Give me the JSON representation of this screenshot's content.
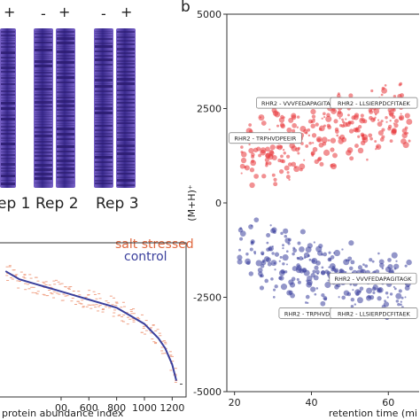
{
  "panel_labels": {
    "b": "b"
  },
  "gel_panel": {
    "signs": {
      "minus": "-",
      "plus": "+"
    },
    "replicates": [
      "ep 1",
      "Rep 2",
      "Rep 3"
    ],
    "colors": {
      "lane_light": "#7a63c9",
      "lane_dark": "#3a2a8e",
      "band": "#2a1a6e"
    }
  },
  "chart_data": [
    {
      "type": "scatter",
      "title": "",
      "xlabel": "protein abundance index",
      "ylabel": "",
      "xlim": [
        -40,
        1300
      ],
      "x_ticks": [
        "00",
        "600",
        "800",
        "1000",
        "1200"
      ],
      "grid": false,
      "legend": {
        "placement": "top-right",
        "entries": [
          {
            "name": "salt stressed",
            "color": "#e8856a"
          },
          {
            "name": "control",
            "color": "#3a3f9c"
          }
        ]
      },
      "series": [
        {
          "name": "salt stressed",
          "style": "points",
          "color": "#f0a58a",
          "x": [
            0,
            50,
            100,
            150,
            200,
            250,
            300,
            350,
            400,
            450,
            500,
            550,
            600,
            650,
            700,
            750,
            800,
            850,
            900,
            950,
            1000,
            1050,
            1100,
            1150,
            1200,
            1230
          ],
          "y": [
            0.8,
            0.7,
            0.6,
            0.55,
            0.5,
            0.45,
            0.4,
            0.35,
            0.3,
            0.25,
            0.2,
            0.15,
            0.1,
            0.05,
            0.0,
            -0.05,
            -0.1,
            -0.2,
            -0.3,
            -0.4,
            -0.5,
            -0.65,
            -0.85,
            -1.1,
            -1.5,
            -1.9
          ]
        },
        {
          "name": "control",
          "style": "line",
          "color": "#3a3f9c",
          "x": [
            0,
            100,
            200,
            300,
            400,
            500,
            600,
            700,
            800,
            900,
            1000,
            1100,
            1150,
            1200,
            1230
          ],
          "y": [
            0.8,
            0.6,
            0.5,
            0.4,
            0.3,
            0.2,
            0.1,
            0.0,
            -0.1,
            -0.3,
            -0.5,
            -0.85,
            -1.1,
            -1.5,
            -1.9
          ]
        }
      ],
      "annotations": [
        "-"
      ]
    },
    {
      "type": "scatter",
      "title": "",
      "xlabel": "retention time (mi",
      "ylabel": "(M+H)⁺",
      "xlim": [
        18,
        68
      ],
      "ylim": [
        -5000,
        5000
      ],
      "x_ticks": [
        "20",
        "40",
        "60"
      ],
      "y_ticks": [
        "5000",
        "2500",
        "0",
        "-2500",
        "-5000"
      ],
      "grid": false,
      "series": [
        {
          "name": "",
          "color": "#e8373a",
          "x": [
            22,
            24,
            25,
            27,
            28,
            29,
            30,
            31,
            32,
            33,
            34,
            35,
            36,
            37,
            38,
            39,
            40,
            41,
            42,
            43,
            44,
            45,
            46,
            47,
            48,
            49,
            50,
            51,
            52,
            53,
            54,
            55,
            56,
            57,
            58,
            59,
            60,
            61,
            62,
            63,
            64,
            65
          ],
          "y": [
            1200,
            1500,
            1000,
            1800,
            1300,
            1600,
            1100,
            1900,
            1400,
            1700,
            1200,
            2000,
            1500,
            1800,
            1300,
            2100,
            1600,
            1900,
            1400,
            2200,
            1700,
            2000,
            1500,
            2300,
            1800,
            2100,
            1600,
            2400,
            1900,
            2200,
            1700,
            2500,
            2000,
            2300,
            1800,
            2600,
            2100,
            2400,
            1900,
            2700,
            2200,
            2000
          ]
        },
        {
          "name": "",
          "color": "#3a3f9c",
          "x": [
            22,
            24,
            25,
            27,
            28,
            29,
            30,
            31,
            32,
            33,
            34,
            35,
            36,
            37,
            38,
            39,
            40,
            41,
            42,
            43,
            44,
            45,
            46,
            47,
            48,
            49,
            50,
            51,
            52,
            53,
            54,
            55,
            56,
            57,
            58,
            59,
            60,
            61,
            62,
            63,
            64,
            65
          ],
          "y": [
            -1200,
            -1500,
            -1000,
            -1800,
            -1300,
            -1600,
            -1100,
            -1900,
            -1400,
            -1700,
            -1200,
            -2000,
            -1500,
            -1800,
            -1300,
            -2100,
            -1600,
            -1900,
            -1400,
            -2200,
            -1700,
            -2000,
            -1500,
            -2300,
            -1800,
            -2100,
            -1600,
            -2400,
            -1900,
            -2200,
            -1700,
            -2500,
            -2000,
            -2300,
            -1800,
            -2600,
            -2100,
            -2400,
            -1900,
            -2700,
            -2200,
            -2000
          ]
        }
      ],
      "annotations": [
        {
          "text": "RHR2 - VVVFEDAPAGITAGK",
          "x": 37,
          "y": 2650
        },
        {
          "text": "RHR2 - LLSIERPDCFITAEK",
          "x": 58,
          "y": 2650
        },
        {
          "text": "RHR2 - TRPHVDPEEIR",
          "x": 28,
          "y": 1720
        },
        {
          "text": "RHR2 - VVVFEDAPAGITAGK",
          "x": 56,
          "y": -2000
        },
        {
          "text": "RHR2 - TRPHVDPEEIR",
          "x": 41,
          "y": -2920
        },
        {
          "text": "RHR2 - LLSIERPDCFITAEK",
          "x": 59,
          "y": -2920
        }
      ]
    }
  ]
}
